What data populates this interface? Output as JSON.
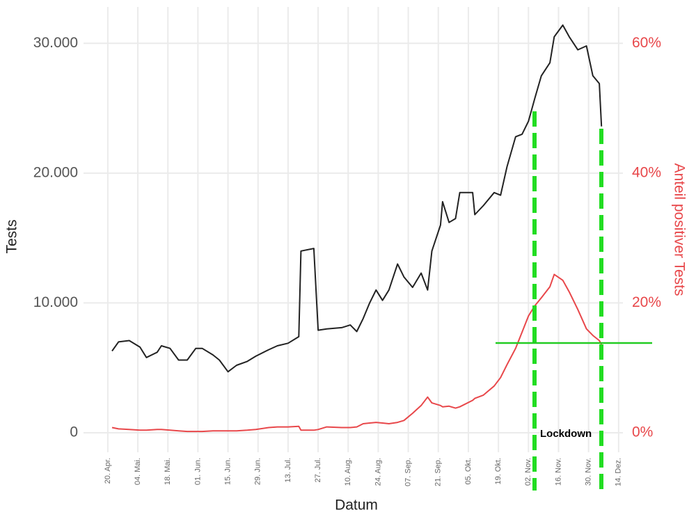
{
  "chart_data": {
    "type": "line",
    "x_label": "Datum",
    "y_label": "Tests",
    "y2_label": "Anteil positiver Tests",
    "annotation": "Lockdown",
    "grid": true,
    "xlim": [
      -11.3,
      240
    ],
    "xticks": [
      {
        "value": 0,
        "label": "20. Apr."
      },
      {
        "value": 14,
        "label": "04. Mai."
      },
      {
        "value": 28,
        "label": "18. Mai."
      },
      {
        "value": 42,
        "label": "01. Jun."
      },
      {
        "value": 56,
        "label": "15. Jun."
      },
      {
        "value": 70,
        "label": "29. Jun."
      },
      {
        "value": 84,
        "label": "13. Jul."
      },
      {
        "value": 98,
        "label": "27. Jul."
      },
      {
        "value": 112,
        "label": "10. Aug."
      },
      {
        "value": 126,
        "label": "24. Aug."
      },
      {
        "value": 140,
        "label": "07. Sep."
      },
      {
        "value": 154,
        "label": "21. Sep."
      },
      {
        "value": 168,
        "label": "05. Okt."
      },
      {
        "value": 182,
        "label": "19. Okt."
      },
      {
        "value": 196,
        "label": "02. Nov."
      },
      {
        "value": 210,
        "label": "16. Nov."
      },
      {
        "value": 224,
        "label": "30. Nov."
      },
      {
        "value": 238,
        "label": "14. Dez."
      }
    ],
    "ylim": [
      -1500,
      32800
    ],
    "yticks": [
      0,
      {
        "value": 10000,
        "label": "10.000"
      },
      {
        "value": 20000,
        "label": "20.000"
      },
      {
        "value": 30000,
        "label": "30.000"
      }
    ],
    "y2lim": [
      -3,
      65.6
    ],
    "y2ticks": [
      {
        "value": 0,
        "label": "0%"
      },
      {
        "value": 20,
        "label": "20%"
      },
      {
        "value": 40,
        "label": "40%"
      },
      {
        "value": 60,
        "label": "60%"
      }
    ],
    "x": [
      2,
      5,
      10,
      15,
      18,
      23,
      25,
      29,
      33,
      37,
      41,
      44,
      49,
      52,
      56,
      60,
      65,
      69,
      75,
      79,
      84,
      89,
      90,
      96,
      98,
      102,
      109,
      113,
      116,
      119,
      122,
      125,
      128,
      131,
      135,
      138,
      142,
      146,
      149,
      151,
      155,
      156,
      159,
      162,
      164,
      170,
      171,
      175,
      180,
      183,
      186,
      190,
      193,
      196,
      199,
      202,
      206,
      208,
      212,
      215,
      219,
      223,
      226,
      229,
      230
    ],
    "series": [
      {
        "color": "#222222",
        "axis": "y",
        "values": [
          6300,
          7000,
          7100,
          6600,
          5800,
          6200,
          6700,
          6500,
          5600,
          5600,
          6500,
          6500,
          6000,
          5600,
          4700,
          5200,
          5500,
          5900,
          6400,
          6700,
          6900,
          7400,
          14000,
          14200,
          7900,
          8000,
          8100,
          8300,
          7800,
          8800,
          10000,
          11000,
          10200,
          11000,
          13000,
          12000,
          11200,
          12300,
          11000,
          14000,
          16000,
          17800,
          16200,
          16500,
          18500,
          18500,
          16800,
          17500,
          18500,
          18300,
          20500,
          22800,
          23000,
          24000,
          25800,
          27500,
          28500,
          30500,
          31400,
          30500,
          29500,
          29800,
          27500,
          26900,
          23600
        ]
      },
      {
        "color": "#e8474a",
        "axis": "y2",
        "values": [
          0.8,
          0.6,
          0.5,
          0.4,
          0.4,
          0.5,
          0.5,
          0.4,
          0.3,
          0.2,
          0.2,
          0.2,
          0.3,
          0.3,
          0.3,
          0.3,
          0.4,
          0.5,
          0.8,
          0.9,
          0.9,
          1.0,
          0.4,
          0.4,
          0.5,
          0.9,
          0.8,
          0.8,
          0.9,
          1.4,
          1.5,
          1.6,
          1.5,
          1.4,
          1.6,
          1.9,
          3.0,
          4.2,
          5.5,
          4.6,
          4.2,
          4.0,
          4.1,
          3.8,
          4.0,
          5.0,
          5.3,
          5.8,
          7.2,
          8.5,
          10.5,
          13,
          15.5,
          18,
          19.6,
          20.8,
          22.5,
          24.4,
          23.5,
          21.7,
          19,
          16,
          15,
          14.2,
          13.6
        ]
      }
    ]
  }
}
